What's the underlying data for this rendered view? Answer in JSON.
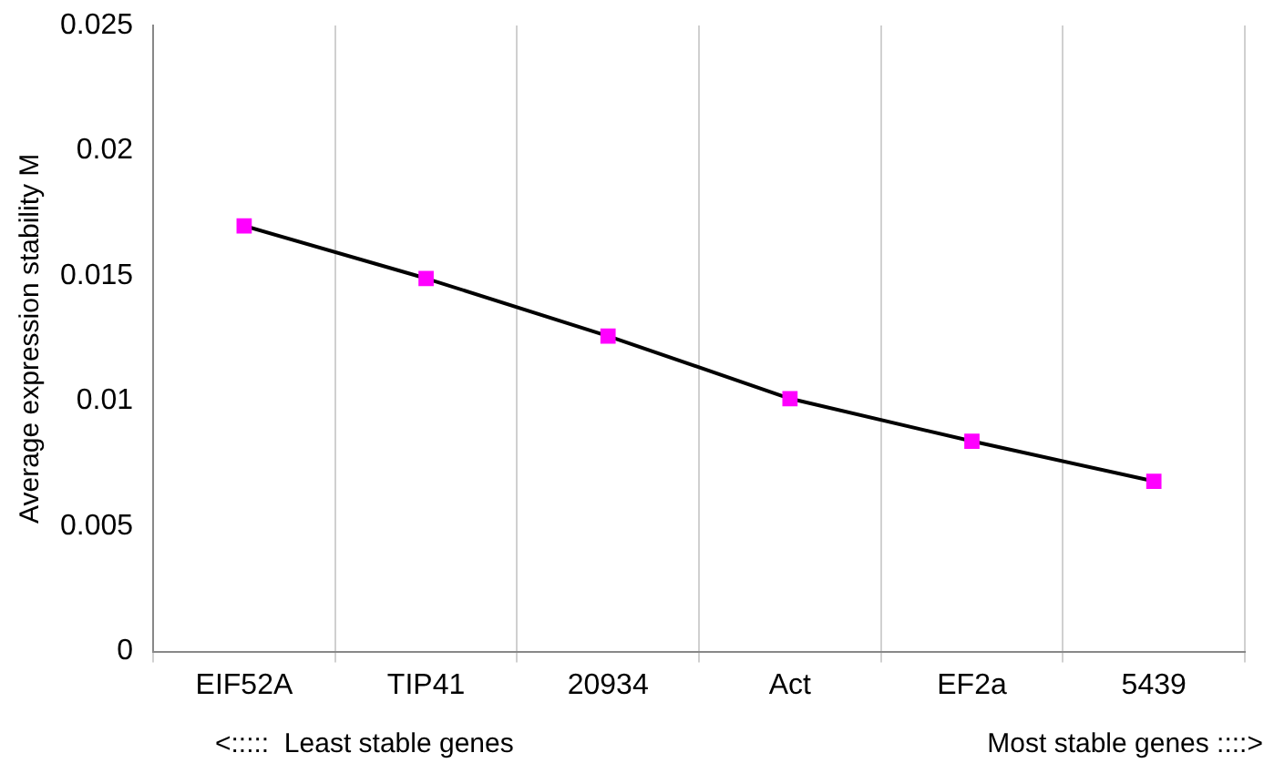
{
  "chart_data": {
    "type": "line",
    "ylabel": "Average expression stability M",
    "categories": [
      "EIF52A",
      "TIP41",
      "20934",
      "Act",
      "EF2a",
      "5439"
    ],
    "series": [
      {
        "color": "#000000",
        "colors": [
          "#ff00ff",
          "#ff00ff",
          "#ff00ff",
          "#ff00ff",
          "#ff00ff",
          "#ff00ff"
        ],
        "values": [
          0.017,
          0.0149,
          0.0126,
          0.0101,
          0.0084,
          0.0068
        ]
      }
    ],
    "marker": "square",
    "ylim": [
      0,
      0.025
    ],
    "yticks": [
      0,
      0.005,
      0.01,
      0.015,
      0.02,
      0.025
    ],
    "grid": "x",
    "legend": false,
    "annotations": [
      "<:::::  Least stable genes",
      "Most stable genes ::::>"
    ]
  }
}
